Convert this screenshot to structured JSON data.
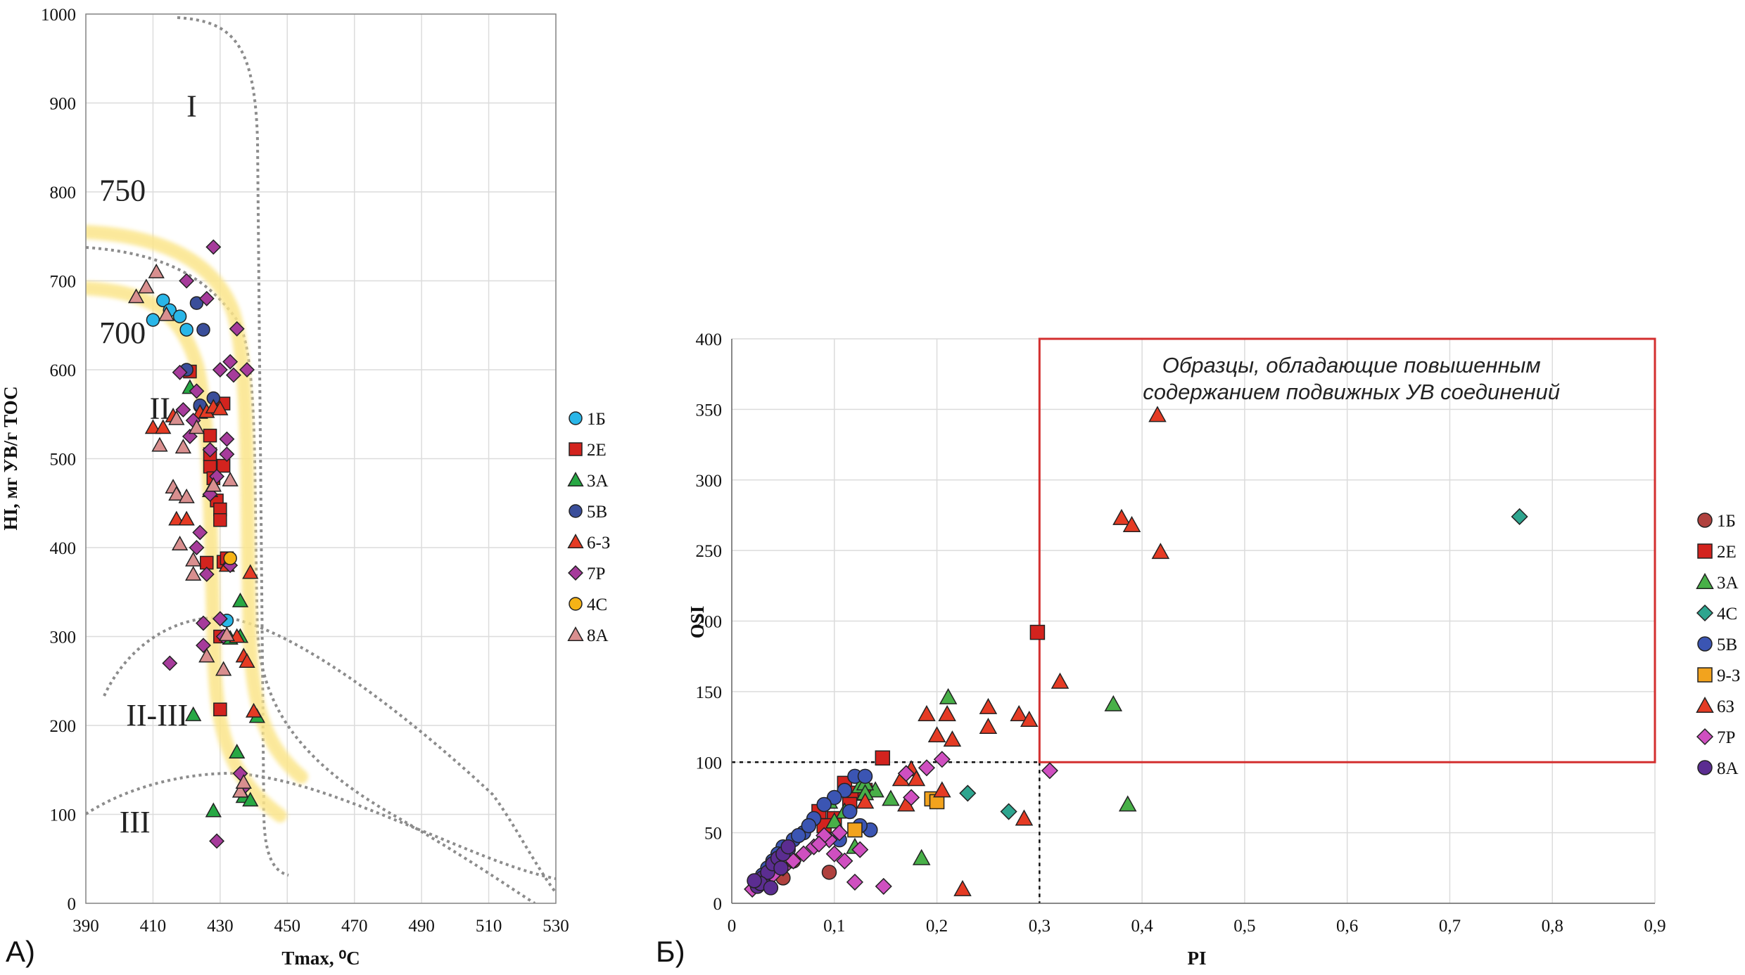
{
  "chart_data": [
    {
      "type": "scatter",
      "panel_label": "А)",
      "xlabel": "Tmax, ⁰С",
      "ylabel": "HI, мг УВ/г ТОС",
      "xlim": [
        390,
        530
      ],
      "ylim": [
        0,
        1000
      ],
      "xticks": [
        390,
        410,
        430,
        450,
        470,
        490,
        510,
        530
      ],
      "yticks": [
        0,
        100,
        200,
        300,
        400,
        500,
        600,
        700,
        800,
        900,
        1000
      ],
      "grid": true,
      "legend_position": "right",
      "zone_labels": [
        {
          "text": "I",
          "x": 420,
          "y": 885
        },
        {
          "text": "II",
          "x": 409,
          "y": 545
        },
        {
          "text": "II-III",
          "x": 402,
          "y": 200
        },
        {
          "text": "III",
          "x": 400,
          "y": 80
        },
        {
          "text": "750",
          "x": 394,
          "y": 790
        },
        {
          "text": "700",
          "x": 394,
          "y": 630
        }
      ],
      "series": [
        {
          "name": "1Б",
          "marker": "circle",
          "color": "#29b6e8",
          "x": [
            410,
            413,
            415,
            418,
            420,
            424,
            432
          ],
          "y": [
            656,
            678,
            667,
            660,
            645,
            559,
            318
          ]
        },
        {
          "name": "2Е",
          "marker": "square",
          "color": "#d3231e",
          "x": [
            421,
            427,
            427,
            428,
            429,
            430,
            430,
            431,
            431,
            431,
            426,
            427,
            430,
            432,
            430
          ],
          "y": [
            598,
            526,
            491,
            478,
            453,
            443,
            431,
            492,
            562,
            384,
            383,
            505,
            300,
            388,
            218
          ]
        },
        {
          "name": "3А",
          "marker": "triangle",
          "color": "#27a844",
          "x": [
            422,
            427,
            428,
            433,
            435,
            436,
            437,
            439,
            441,
            436,
            421
          ],
          "y": [
            212,
            464,
            104,
            298,
            170,
            340,
            120,
            116,
            210,
            300,
            580
          ]
        },
        {
          "name": "5В",
          "marker": "circle",
          "color": "#3a4e9a",
          "x": [
            420,
            423,
            425,
            428,
            424
          ],
          "y": [
            600,
            675,
            645,
            568,
            560
          ]
        },
        {
          "name": "6-З",
          "marker": "triangle",
          "color": "#e53b24",
          "x": [
            410,
            413,
            416,
            417,
            420,
            424,
            426,
            428,
            430,
            432,
            435,
            437,
            438,
            439,
            440
          ],
          "y": [
            535,
            535,
            548,
            432,
            432,
            552,
            553,
            558,
            556,
            380,
            300,
            278,
            272,
            372,
            216
          ]
        },
        {
          "name": "7Р",
          "marker": "diamond",
          "color": "#a63b9b",
          "x": [
            415,
            418,
            420,
            422,
            423,
            424,
            425,
            426,
            427,
            428,
            429,
            430,
            431,
            432,
            433,
            434,
            435,
            436,
            437,
            438,
            419,
            421,
            423,
            425,
            427,
            429,
            432,
            426,
            430,
            433
          ],
          "y": [
            270,
            597,
            700,
            543,
            576,
            417,
            290,
            680,
            510,
            738,
            70,
            320,
            300,
            522,
            609,
            594,
            646,
            146,
            130,
            600,
            555,
            525,
            400,
            315,
            460,
            480,
            505,
            370,
            600,
            380
          ]
        },
        {
          "name": "4С",
          "marker": "circle",
          "color": "#f5b316",
          "x": [
            433
          ],
          "y": [
            388
          ]
        },
        {
          "name": "8А",
          "marker": "triangle",
          "color": "#d98f8f",
          "x": [
            405,
            408,
            411,
            412,
            414,
            416,
            417,
            418,
            419,
            420,
            422,
            423,
            426,
            428,
            431,
            432,
            433,
            436,
            437,
            417,
            422
          ],
          "y": [
            682,
            693,
            710,
            515,
            662,
            468,
            460,
            404,
            513,
            457,
            370,
            535,
            278,
            470,
            263,
            302,
            476,
            126,
            136,
            545,
            386
          ]
        }
      ]
    },
    {
      "type": "scatter",
      "panel_label": "Б)",
      "xlabel": "PI",
      "ylabel": "OSI",
      "xlim": [
        0,
        0.9
      ],
      "ylim": [
        0,
        400
      ],
      "xticks": [
        "0",
        "0,1",
        "0,2",
        "0,3",
        "0,4",
        "0,5",
        "0,6",
        "0,7",
        "0,8",
        "0,9"
      ],
      "yticks": [
        0,
        50,
        100,
        150,
        200,
        250,
        300,
        350,
        400
      ],
      "grid": true,
      "legend_position": "right",
      "annotation_lines": [
        "Образцы, обладающие повышенным",
        "содержанием подвижных УВ соединений"
      ],
      "highlight_box": {
        "x0": 0.3,
        "x1": 0.9,
        "y0": 100,
        "y1": 400,
        "color": "#d32f2f"
      },
      "threshold": {
        "x": 0.3,
        "y": 100
      },
      "series": [
        {
          "name": "1Б",
          "marker": "circle",
          "color": "#b0413e",
          "x": [
            0.095,
            0.05,
            0.035,
            0.06,
            0.042
          ],
          "y": [
            22,
            18,
            15,
            30,
            25
          ]
        },
        {
          "name": "2Е",
          "marker": "square",
          "color": "#d3231e",
          "x": [
            0.298,
            0.147,
            0.11,
            0.12,
            0.1,
            0.09,
            0.13,
            0.085,
            0.115
          ],
          "y": [
            192,
            103,
            85,
            78,
            60,
            55,
            80,
            65,
            70
          ]
        },
        {
          "name": "3А",
          "marker": "triangle",
          "color": "#48b048",
          "x": [
            0.211,
            0.372,
            0.386,
            0.185,
            0.155,
            0.12,
            0.14,
            0.095,
            0.125,
            0.13,
            0.11,
            0.1,
            0.13
          ],
          "y": [
            146,
            141,
            70,
            32,
            74,
            40,
            80,
            72,
            83,
            85,
            65,
            58,
            78
          ]
        },
        {
          "name": "4С",
          "marker": "diamond",
          "color": "#2ea58f",
          "x": [
            0.768,
            0.23,
            0.27
          ],
          "y": [
            274,
            78,
            65
          ]
        },
        {
          "name": "5В",
          "marker": "circle",
          "color": "#3b55b3",
          "x": [
            0.12,
            0.13,
            0.135,
            0.11,
            0.1,
            0.09,
            0.08,
            0.07,
            0.06,
            0.05,
            0.045,
            0.04,
            0.035,
            0.03,
            0.115,
            0.125,
            0.105,
            0.075,
            0.065,
            0.055
          ],
          "y": [
            90,
            90,
            52,
            80,
            75,
            70,
            60,
            50,
            45,
            40,
            35,
            30,
            25,
            20,
            65,
            55,
            45,
            55,
            48,
            38
          ]
        },
        {
          "name": "9-З",
          "marker": "square",
          "color": "#f2a31e",
          "x": [
            0.195,
            0.2,
            0.12
          ],
          "y": [
            74,
            72,
            52
          ]
        },
        {
          "name": "6З",
          "marker": "triangle",
          "color": "#e53b24",
          "x": [
            0.415,
            0.38,
            0.39,
            0.418,
            0.32,
            0.19,
            0.21,
            0.25,
            0.28,
            0.29,
            0.25,
            0.2,
            0.215,
            0.165,
            0.175,
            0.18,
            0.17,
            0.205,
            0.225,
            0.285,
            0.13
          ],
          "y": [
            346,
            273,
            268,
            249,
            157,
            134,
            134,
            139,
            134,
            130,
            125,
            119,
            116,
            88,
            95,
            88,
            70,
            80,
            10,
            60,
            72
          ]
        },
        {
          "name": "7Р",
          "marker": "diamond",
          "color": "#cf4fc0",
          "x": [
            0.31,
            0.17,
            0.19,
            0.205,
            0.175,
            0.12,
            0.1,
            0.095,
            0.11,
            0.08,
            0.07,
            0.06,
            0.05,
            0.04,
            0.03,
            0.02,
            0.148,
            0.125,
            0.105,
            0.09,
            0.085
          ],
          "y": [
            94,
            92,
            96,
            102,
            75,
            15,
            35,
            45,
            30,
            40,
            35,
            30,
            25,
            20,
            15,
            10,
            12,
            38,
            50,
            48,
            42
          ]
        },
        {
          "name": "8А",
          "marker": "circle",
          "color": "#5b2d91",
          "x": [
            0.025,
            0.03,
            0.035,
            0.04,
            0.045,
            0.05,
            0.055,
            0.028,
            0.038,
            0.048,
            0.022
          ],
          "y": [
            12,
            18,
            22,
            28,
            32,
            35,
            40,
            14,
            11,
            25,
            16
          ]
        }
      ]
    }
  ]
}
